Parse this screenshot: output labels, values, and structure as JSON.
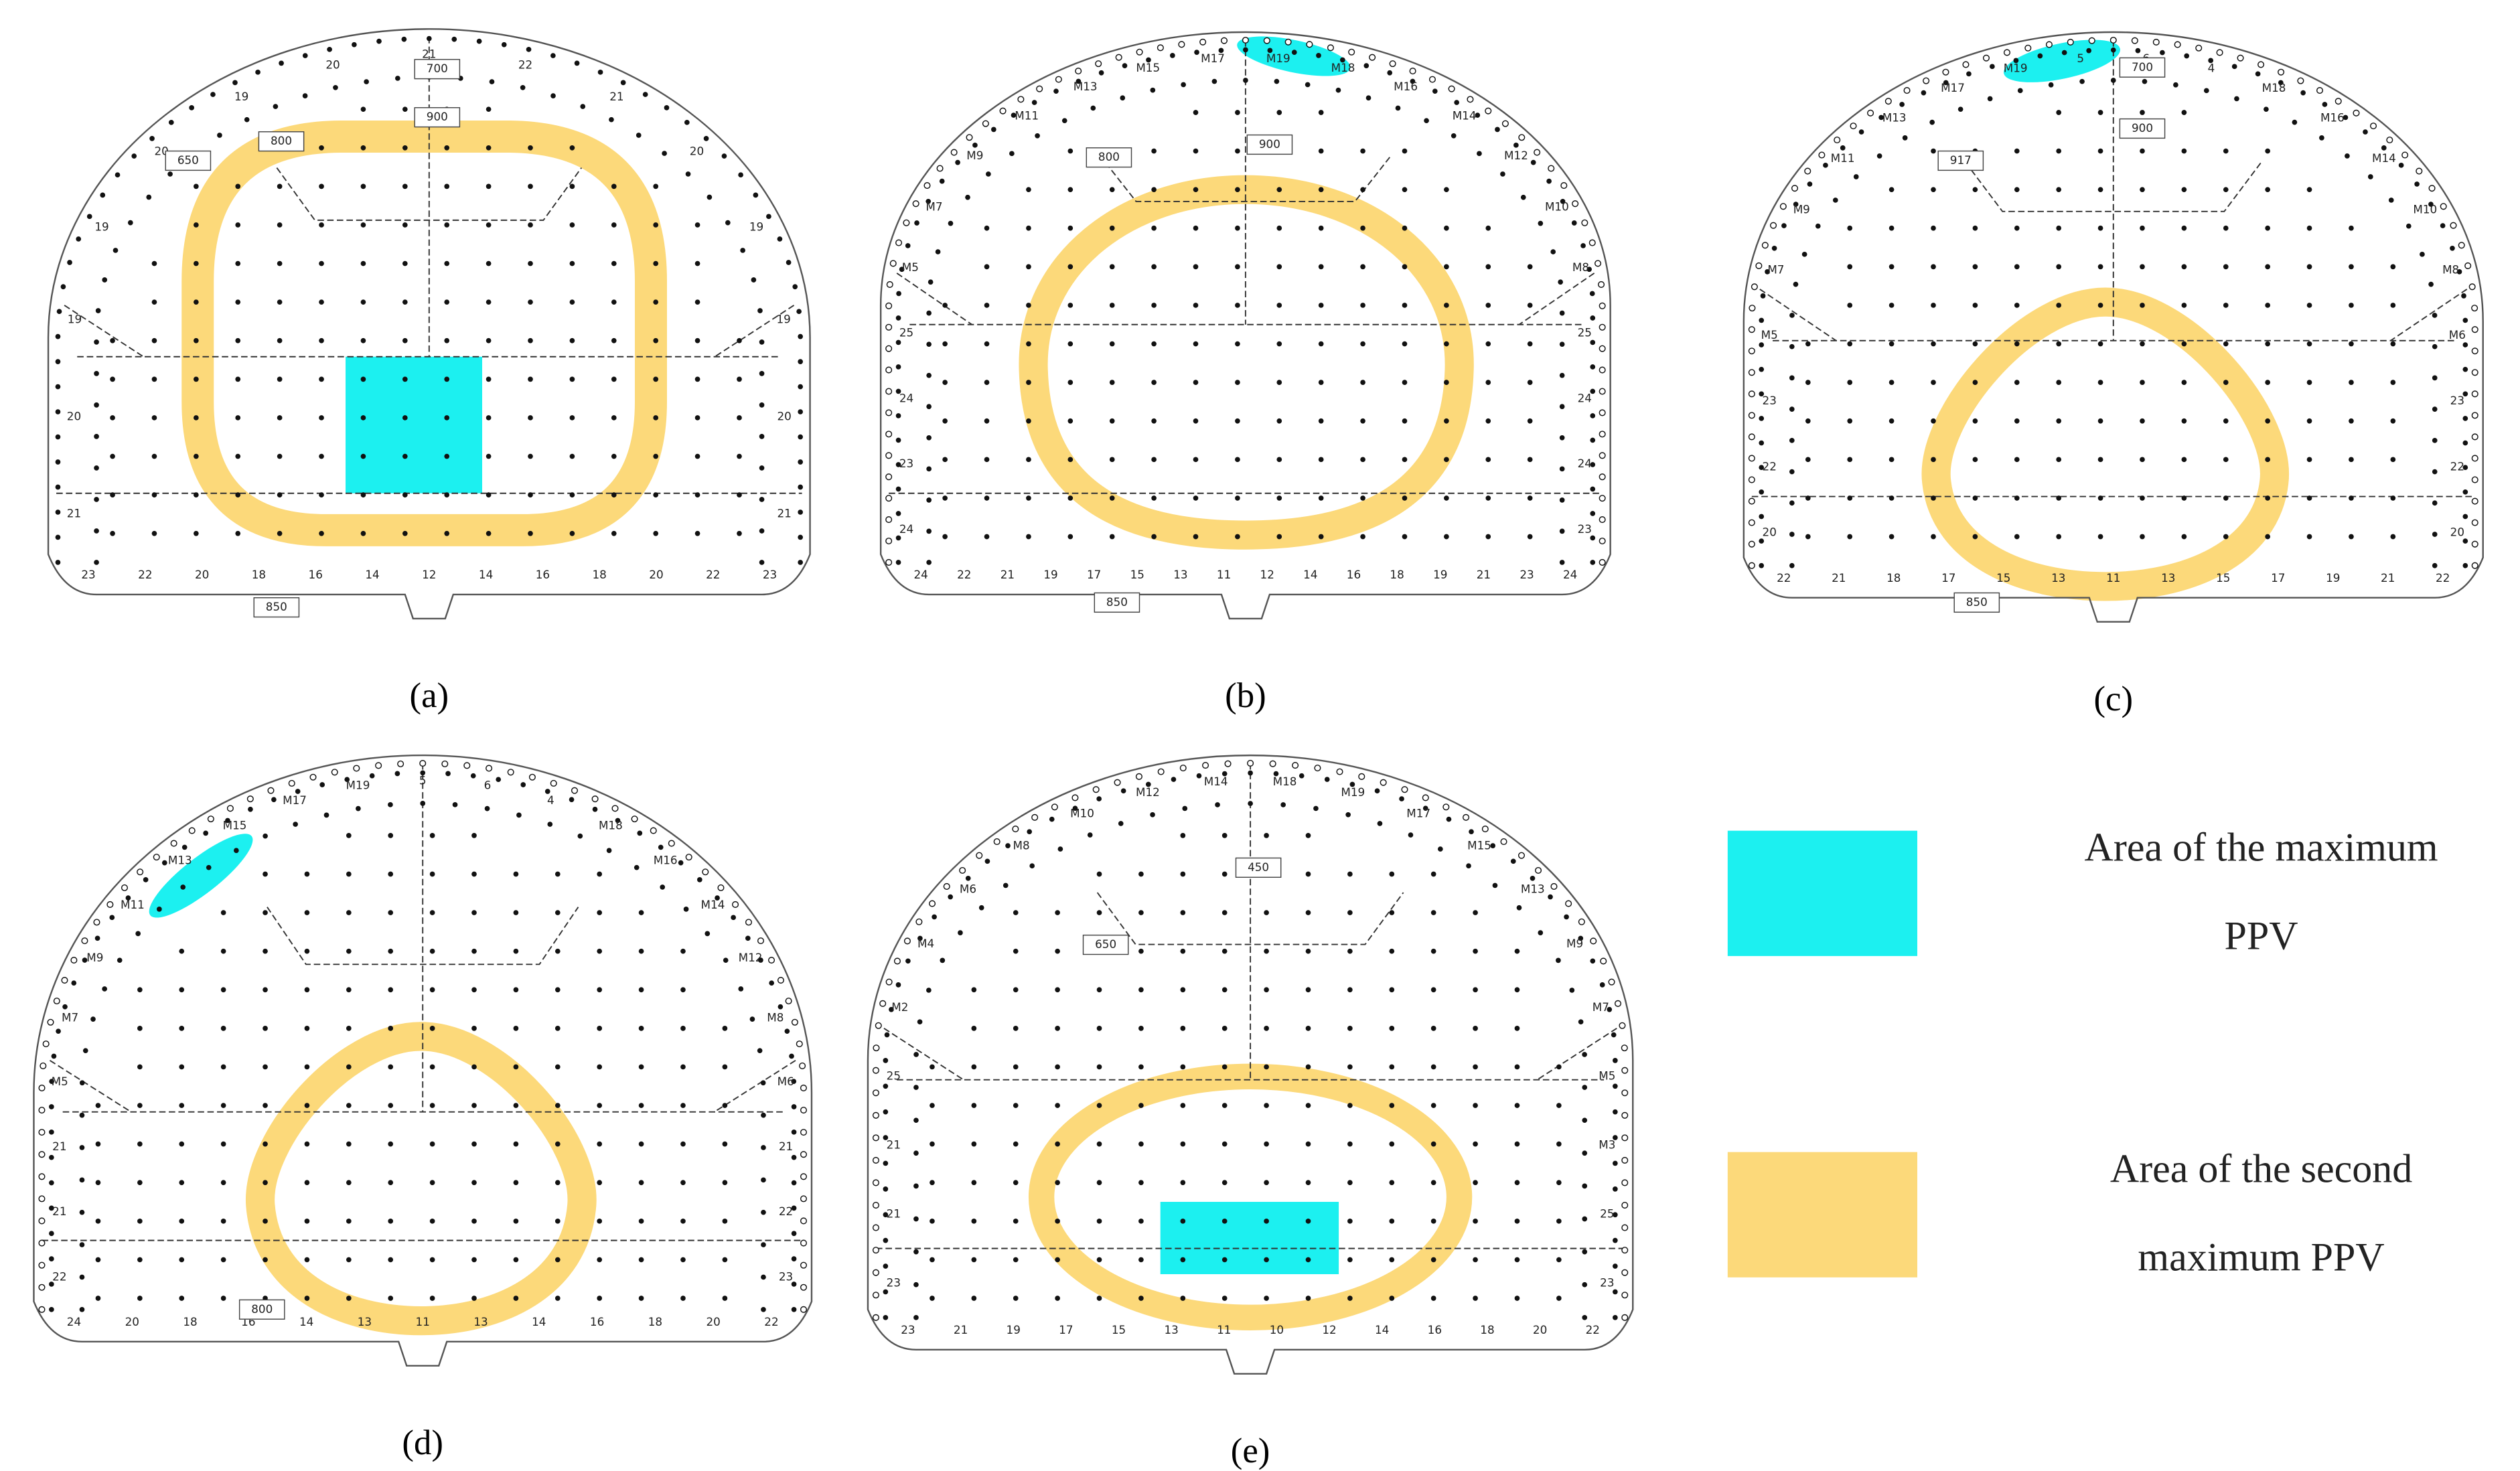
{
  "panels": [
    {
      "label": "(a)",
      "contour_labels": [
        "21",
        "20",
        "19",
        "19",
        "20",
        "19",
        "20",
        "21",
        "22",
        "21",
        "20",
        "19",
        "19",
        "20",
        "21"
      ],
      "floor_labels": [
        "23",
        "22",
        "20",
        "18",
        "16",
        "14",
        "12",
        "14",
        "16",
        "18",
        "20",
        "22",
        "23"
      ],
      "dimension_labels": [
        "650",
        "800",
        "900",
        "700",
        "850"
      ]
    },
    {
      "label": "(b)",
      "contour_labels": [
        "24",
        "23",
        "24",
        "25",
        "M5",
        "M7",
        "M9",
        "M11",
        "M13",
        "M15",
        "M17",
        "M19",
        "M18",
        "M16",
        "M14",
        "M12",
        "M10",
        "M8",
        "25",
        "24",
        "24",
        "23"
      ],
      "floor_labels": [
        "24",
        "22",
        "21",
        "19",
        "17",
        "15",
        "13",
        "11",
        "12",
        "14",
        "16",
        "18",
        "19",
        "21",
        "23",
        "24"
      ],
      "dimension_labels": [
        "800",
        "900",
        "850"
      ]
    },
    {
      "label": "(c)",
      "contour_labels": [
        "20",
        "22",
        "23",
        "M5",
        "M7",
        "M9",
        "M11",
        "M13",
        "M17",
        "M19",
        "5",
        "6",
        "4",
        "M18",
        "M16",
        "M14",
        "M10",
        "M8",
        "M6",
        "23",
        "22",
        "20"
      ],
      "floor_labels": [
        "22",
        "21",
        "18",
        "17",
        "15",
        "13",
        "11",
        "13",
        "15",
        "17",
        "19",
        "21",
        "22"
      ],
      "dimension_labels": [
        "917",
        "900",
        "700",
        "850"
      ]
    },
    {
      "label": "(d)",
      "contour_labels": [
        "22",
        "21",
        "21",
        "M5",
        "M7",
        "M9",
        "M11",
        "M13",
        "M15",
        "M17",
        "M19",
        "5",
        "6",
        "4",
        "M18",
        "M16",
        "M14",
        "M12",
        "M8",
        "M6",
        "21",
        "22",
        "23"
      ],
      "floor_labels": [
        "24",
        "20",
        "18",
        "16",
        "14",
        "13",
        "11",
        "13",
        "14",
        "16",
        "18",
        "20",
        "22"
      ],
      "dimension_labels": [
        "800"
      ]
    },
    {
      "label": "(e)",
      "contour_labels": [
        "23",
        "21",
        "21",
        "25",
        "M2",
        "M4",
        "M6",
        "M8",
        "M10",
        "M12",
        "M14",
        "M18",
        "M19",
        "M17",
        "M15",
        "M13",
        "M9",
        "M7",
        "M5",
        "M3",
        "25",
        "23"
      ],
      "floor_labels": [
        "23",
        "21",
        "19",
        "17",
        "15",
        "13",
        "11",
        "10",
        "12",
        "14",
        "16",
        "18",
        "20",
        "22"
      ],
      "dimension_labels": [
        "650",
        "450"
      ]
    }
  ],
  "legend": [
    {
      "lines": [
        "Area of the maximum",
        "PPV"
      ],
      "color": "#1cf0f0"
    },
    {
      "lines": [
        "Area of the second",
        "maximum PPV"
      ],
      "color": "#fcd97a"
    }
  ]
}
